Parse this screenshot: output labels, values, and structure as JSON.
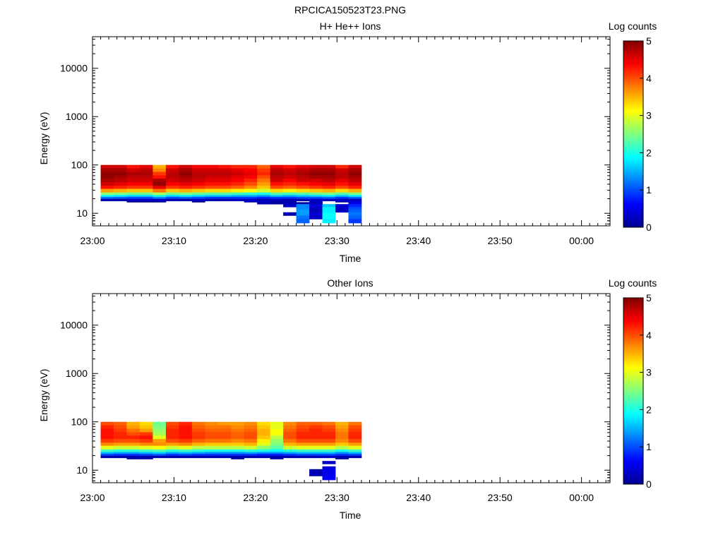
{
  "figure": {
    "title": "RPCICA150523T23.PNG"
  },
  "chart_data": [
    {
      "type": "heatmap",
      "title": "H+ He++ Ions",
      "xlabel": "Time",
      "ylabel": "Energy (eV)",
      "x_ticks": [
        "23:00",
        "23:10",
        "23:20",
        "23:30",
        "23:40",
        "23:50",
        "00:00"
      ],
      "xlim_minutes": [
        0,
        63.5
      ],
      "y_scale": "log",
      "ylim": [
        5.5,
        45000
      ],
      "y_ticks": [
        10,
        100,
        1000,
        10000
      ],
      "y_tick_labels": [
        "10",
        "100",
        "1000",
        "10000"
      ],
      "grid": false,
      "colorbar": {
        "label": "Log counts",
        "range": [
          0,
          5
        ],
        "ticks": [
          "0",
          "1",
          "2",
          "3",
          "4",
          "5"
        ]
      },
      "time_bins_start_minutes": [
        1,
        2.6,
        4.2,
        5.8,
        7.4,
        9,
        10.6,
        12.2,
        13.8,
        15.4,
        17,
        18.6,
        20.2,
        21.8,
        23.4,
        25,
        26.6,
        28.2,
        29.8,
        31.4
      ],
      "time_bins_end_minutes": [
        2.6,
        4.2,
        5.8,
        7.4,
        9,
        10.6,
        12.2,
        13.8,
        15.4,
        17,
        18.6,
        20.2,
        21.8,
        23.4,
        25,
        26.6,
        28.2,
        29.8,
        31.4,
        33
      ],
      "energy_levels_eV": [
        [
          85,
          100
        ],
        [
          72,
          85
        ],
        [
          61,
          72
        ],
        [
          52,
          61
        ],
        [
          44,
          52
        ],
        [
          37,
          44
        ],
        [
          32,
          37
        ],
        [
          27,
          32
        ],
        [
          24,
          27
        ],
        [
          22,
          24
        ],
        [
          20,
          22
        ],
        [
          18,
          20
        ],
        [
          17,
          18
        ],
        [
          15.5,
          17
        ],
        [
          13.5,
          15.5
        ],
        [
          12,
          13.5
        ],
        [
          10.5,
          12
        ],
        [
          9,
          10.5
        ],
        [
          7.6,
          9
        ],
        [
          6.3,
          7.6
        ]
      ],
      "log_counts": [
        [
          4.6,
          4.6,
          4.3,
          4.5,
          3.5,
          4.3,
          4.6,
          4.4,
          4.4,
          4.3,
          4.2,
          4.2,
          3.9,
          4.5,
          4.3,
          4.5,
          4.6,
          4.6,
          4.2,
          4.6
        ],
        [
          4.8,
          4.8,
          4.6,
          4.7,
          3.7,
          4.6,
          4.8,
          4.6,
          4.6,
          4.6,
          4.5,
          4.4,
          4.1,
          4.7,
          4.6,
          4.7,
          4.8,
          4.8,
          4.6,
          4.8
        ],
        [
          4.9,
          4.9,
          4.8,
          4.8,
          4.1,
          4.7,
          4.9,
          4.7,
          4.7,
          4.7,
          4.6,
          4.5,
          4.2,
          4.8,
          4.7,
          4.8,
          4.9,
          4.9,
          4.7,
          4.9
        ],
        [
          4.9,
          4.8,
          4.7,
          4.7,
          4.3,
          4.7,
          4.8,
          4.7,
          4.6,
          4.6,
          4.5,
          4.4,
          4.0,
          4.7,
          4.6,
          4.7,
          4.8,
          4.8,
          4.7,
          4.8
        ],
        [
          4.8,
          4.7,
          4.6,
          4.6,
          4.8,
          4.6,
          4.7,
          4.6,
          4.5,
          4.5,
          4.4,
          4.2,
          3.8,
          4.6,
          4.4,
          4.6,
          4.6,
          4.7,
          4.5,
          4.7
        ],
        [
          4.6,
          4.5,
          4.4,
          4.4,
          4.9,
          4.4,
          4.5,
          4.4,
          4.3,
          4.3,
          4.2,
          4.0,
          3.6,
          4.3,
          4.2,
          4.3,
          4.4,
          4.5,
          4.3,
          4.5
        ],
        [
          4.3,
          4.2,
          4.1,
          4.1,
          4.5,
          4.1,
          4.2,
          4.1,
          4.0,
          4.0,
          3.9,
          3.7,
          3.4,
          4.0,
          3.9,
          4.0,
          4.1,
          4.2,
          4.0,
          4.2
        ],
        [
          3.6,
          3.5,
          3.4,
          3.4,
          3.8,
          3.4,
          3.5,
          3.4,
          3.3,
          3.3,
          3.2,
          3.1,
          2.9,
          3.3,
          3.2,
          3.3,
          3.4,
          3.5,
          3.3,
          3.5
        ],
        [
          2.6,
          2.5,
          2.4,
          2.4,
          2.7,
          2.4,
          2.5,
          2.4,
          2.3,
          2.3,
          2.2,
          2.1,
          2.0,
          2.3,
          2.2,
          2.3,
          2.4,
          2.5,
          2.3,
          2.5
        ],
        [
          1.9,
          1.8,
          1.7,
          1.7,
          2.0,
          1.7,
          1.8,
          1.7,
          1.6,
          1.6,
          1.5,
          1.5,
          1.4,
          1.6,
          1.5,
          1.6,
          1.7,
          1.8,
          1.6,
          1.8
        ],
        [
          1.2,
          1.1,
          1.0,
          1.0,
          1.3,
          1.0,
          1.1,
          1.0,
          0.9,
          0.9,
          0.9,
          0.9,
          0.8,
          0.9,
          0.9,
          1.0,
          1.0,
          1.1,
          0.9,
          1.1
        ],
        [
          0.2,
          0.2,
          0.3,
          0.3,
          0.3,
          0.2,
          0.2,
          0.3,
          0.2,
          0.2,
          0.3,
          0.3,
          0.2,
          0.3,
          0.2,
          0.2,
          0.3,
          0.3,
          0.3,
          0.3
        ],
        [
          null,
          null,
          0.1,
          0.1,
          0.1,
          null,
          null,
          0.1,
          null,
          null,
          null,
          0.2,
          0.3,
          0.1,
          0.2,
          null,
          0.3,
          null,
          0.2,
          0.4
        ],
        [
          null,
          null,
          null,
          null,
          null,
          null,
          null,
          null,
          null,
          null,
          null,
          null,
          0.2,
          0.1,
          0.2,
          0.1,
          0.2,
          null,
          null,
          0.5
        ],
        [
          null,
          null,
          null,
          null,
          null,
          null,
          null,
          null,
          null,
          null,
          null,
          null,
          null,
          null,
          0.3,
          1.3,
          0.4,
          1.6,
          0.4,
          0.8
        ],
        [
          null,
          null,
          null,
          null,
          null,
          null,
          null,
          null,
          null,
          null,
          null,
          null,
          null,
          null,
          null,
          1.3,
          0.3,
          1.8,
          0.3,
          1.0
        ],
        [
          null,
          null,
          null,
          null,
          null,
          null,
          null,
          null,
          null,
          null,
          null,
          null,
          null,
          null,
          null,
          1.4,
          0.2,
          1.8,
          0.3,
          1.1
        ],
        [
          null,
          null,
          null,
          null,
          null,
          null,
          null,
          null,
          null,
          null,
          null,
          null,
          null,
          null,
          0.2,
          1.4,
          0.4,
          1.9,
          null,
          1.2
        ],
        [
          null,
          null,
          null,
          null,
          null,
          null,
          null,
          null,
          null,
          null,
          null,
          null,
          null,
          null,
          null,
          1.2,
          0.3,
          1.9,
          null,
          1.1
        ],
        [
          null,
          null,
          null,
          null,
          null,
          null,
          null,
          null,
          null,
          null,
          null,
          null,
          null,
          null,
          null,
          1.1,
          null,
          1.8,
          null,
          0.9
        ]
      ]
    },
    {
      "type": "heatmap",
      "title": "Other Ions",
      "xlabel": "Time",
      "ylabel": "Energy (eV)",
      "x_ticks": [
        "23:00",
        "23:10",
        "23:20",
        "23:30",
        "23:40",
        "23:50",
        "00:00"
      ],
      "xlim_minutes": [
        0,
        63.5
      ],
      "y_scale": "log",
      "ylim": [
        5.5,
        45000
      ],
      "y_ticks": [
        10,
        100,
        1000,
        10000
      ],
      "y_tick_labels": [
        "10",
        "100",
        "1000",
        "10000"
      ],
      "grid": false,
      "colorbar": {
        "label": "Log counts",
        "range": [
          0,
          5
        ],
        "ticks": [
          "0",
          "1",
          "2",
          "3",
          "4",
          "5"
        ]
      },
      "time_bins_start_minutes": [
        1,
        2.6,
        4.2,
        5.8,
        7.4,
        9,
        10.6,
        12.2,
        13.8,
        15.4,
        17,
        18.6,
        20.2,
        21.8,
        23.4,
        25,
        26.6,
        28.2,
        29.8,
        31.4
      ],
      "time_bins_end_minutes": [
        2.6,
        4.2,
        5.8,
        7.4,
        9,
        10.6,
        12.2,
        13.8,
        15.4,
        17,
        18.6,
        20.2,
        21.8,
        23.4,
        25,
        26.6,
        28.2,
        29.8,
        31.4,
        33
      ],
      "energy_levels_eV": [
        [
          85,
          100
        ],
        [
          72,
          85
        ],
        [
          61,
          72
        ],
        [
          52,
          61
        ],
        [
          44,
          52
        ],
        [
          37,
          44
        ],
        [
          32,
          37
        ],
        [
          27,
          32
        ],
        [
          24,
          27
        ],
        [
          22,
          24
        ],
        [
          20,
          22
        ],
        [
          18,
          20
        ],
        [
          17,
          18
        ],
        [
          15.5,
          17
        ],
        [
          13.5,
          15.5
        ],
        [
          12,
          13.5
        ],
        [
          10.5,
          12
        ],
        [
          9,
          10.5
        ],
        [
          7.6,
          9
        ],
        [
          6.3,
          7.6
        ]
      ],
      "log_counts": [
        [
          4.0,
          3.9,
          3.5,
          3.3,
          2.4,
          4.0,
          4.2,
          3.8,
          3.7,
          3.6,
          3.6,
          3.7,
          3.3,
          3.0,
          3.7,
          3.9,
          3.9,
          3.8,
          3.5,
          3.8
        ],
        [
          4.2,
          4.0,
          3.6,
          3.4,
          2.5,
          4.1,
          4.3,
          3.9,
          3.8,
          3.8,
          3.7,
          3.8,
          3.4,
          3.0,
          3.8,
          4.0,
          4.1,
          4.0,
          3.6,
          4.0
        ],
        [
          4.3,
          4.1,
          3.8,
          3.6,
          2.6,
          4.2,
          4.3,
          4.0,
          3.9,
          3.9,
          3.8,
          3.9,
          3.5,
          3.1,
          3.9,
          4.1,
          4.2,
          4.1,
          3.7,
          4.1
        ],
        [
          4.3,
          4.2,
          4.0,
          4.1,
          2.7,
          4.2,
          4.3,
          4.1,
          4.0,
          4.0,
          3.9,
          4.0,
          3.5,
          3.1,
          4.0,
          4.2,
          4.2,
          4.2,
          3.8,
          4.2
        ],
        [
          4.3,
          4.2,
          4.2,
          4.3,
          3.0,
          4.2,
          4.3,
          4.1,
          4.0,
          4.0,
          3.9,
          4.0,
          3.4,
          2.8,
          4.0,
          4.2,
          4.2,
          4.2,
          3.8,
          4.2
        ],
        [
          4.1,
          4.0,
          4.0,
          4.1,
          3.6,
          4.0,
          4.1,
          3.9,
          3.8,
          3.8,
          3.7,
          3.8,
          3.2,
          2.6,
          3.8,
          4.0,
          4.0,
          4.0,
          3.7,
          4.0
        ],
        [
          3.7,
          3.6,
          3.6,
          3.7,
          3.7,
          3.6,
          3.7,
          3.5,
          3.4,
          3.4,
          3.4,
          3.5,
          3.0,
          2.5,
          3.5,
          3.6,
          3.6,
          3.6,
          3.4,
          3.6
        ],
        [
          3.0,
          2.9,
          2.9,
          3.0,
          3.1,
          2.9,
          3.0,
          2.8,
          2.8,
          2.8,
          2.8,
          2.9,
          2.6,
          2.3,
          2.9,
          3.0,
          3.0,
          3.0,
          2.8,
          3.0
        ],
        [
          2.2,
          2.1,
          2.1,
          2.2,
          2.3,
          2.1,
          2.2,
          2.1,
          2.0,
          2.0,
          2.0,
          2.1,
          2.0,
          1.9,
          2.1,
          2.2,
          2.2,
          2.2,
          2.0,
          2.2
        ],
        [
          1.6,
          1.5,
          1.5,
          1.6,
          1.7,
          1.5,
          1.6,
          1.5,
          1.4,
          1.4,
          1.4,
          1.5,
          1.4,
          1.4,
          1.5,
          1.6,
          1.6,
          1.6,
          1.4,
          1.6
        ],
        [
          1.0,
          0.9,
          0.9,
          1.0,
          1.1,
          0.9,
          1.0,
          0.9,
          0.9,
          0.9,
          0.9,
          0.9,
          0.8,
          0.8,
          0.9,
          1.0,
          1.0,
          1.0,
          0.9,
          1.0
        ],
        [
          0.2,
          0.2,
          0.2,
          0.2,
          0.2,
          0.2,
          0.2,
          0.2,
          0.2,
          0.2,
          0.2,
          0.2,
          0.2,
          0.2,
          0.2,
          0.2,
          0.2,
          0.3,
          0.2,
          0.2
        ],
        [
          null,
          null,
          0.1,
          0.1,
          null,
          null,
          null,
          null,
          null,
          null,
          0.1,
          null,
          null,
          0.1,
          null,
          null,
          null,
          null,
          0.1,
          null
        ],
        [
          null,
          null,
          null,
          null,
          null,
          null,
          null,
          null,
          null,
          null,
          null,
          null,
          null,
          null,
          null,
          null,
          null,
          null,
          null,
          null
        ],
        [
          null,
          null,
          null,
          null,
          null,
          null,
          null,
          null,
          null,
          null,
          null,
          null,
          null,
          null,
          null,
          null,
          null,
          0.3,
          null,
          null
        ],
        [
          null,
          null,
          null,
          null,
          null,
          null,
          null,
          null,
          null,
          null,
          null,
          null,
          null,
          null,
          null,
          null,
          null,
          null,
          null,
          null
        ],
        [
          null,
          null,
          null,
          null,
          null,
          null,
          null,
          null,
          null,
          null,
          null,
          null,
          null,
          null,
          null,
          null,
          null,
          0.4,
          null,
          null
        ],
        [
          null,
          null,
          null,
          null,
          null,
          null,
          null,
          null,
          null,
          null,
          null,
          null,
          null,
          null,
          null,
          null,
          0.2,
          0.5,
          null,
          null
        ],
        [
          null,
          null,
          null,
          null,
          null,
          null,
          null,
          null,
          null,
          null,
          null,
          null,
          null,
          null,
          null,
          null,
          0.2,
          0.5,
          null,
          null
        ],
        [
          null,
          null,
          null,
          null,
          null,
          null,
          null,
          null,
          null,
          null,
          null,
          null,
          null,
          null,
          null,
          null,
          null,
          0.6,
          null,
          null
        ]
      ]
    }
  ]
}
